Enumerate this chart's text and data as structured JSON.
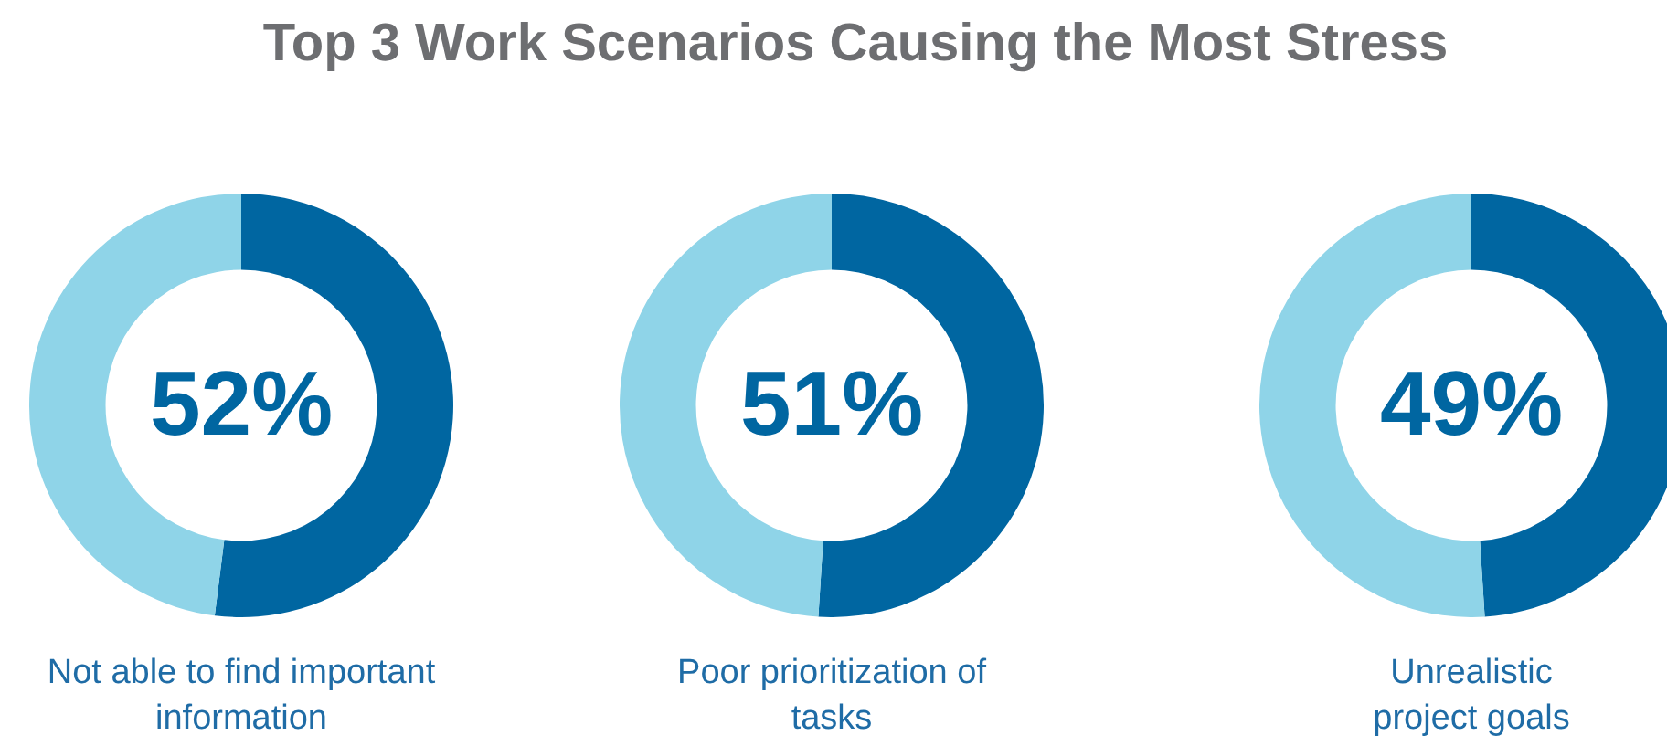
{
  "chart_data": [
    {
      "type": "donut",
      "title": "Top 3 Work Scenarios Causing the Most Stress",
      "categories": [
        null,
        null
      ],
      "values": [
        52,
        48
      ],
      "colors": [
        "#0066a1",
        "#8fd4e8"
      ],
      "value_labels": [
        "52%",
        null
      ],
      "xlabel": "Not able to find important information"
    },
    {
      "type": "donut",
      "categories": [
        null,
        null
      ],
      "values": [
        51,
        49
      ],
      "colors": [
        "#0066a1",
        "#8fd4e8"
      ],
      "value_labels": [
        "51%",
        null
      ],
      "xlabel": "Poor prioritization of tasks"
    },
    {
      "type": "donut",
      "categories": [
        null,
        null
      ],
      "values": [
        49,
        51
      ],
      "colors": [
        "#0066a1",
        "#8fd4e8"
      ],
      "value_labels": [
        "49%",
        null
      ],
      "xlabel": "Unrealistic project goals"
    }
  ]
}
